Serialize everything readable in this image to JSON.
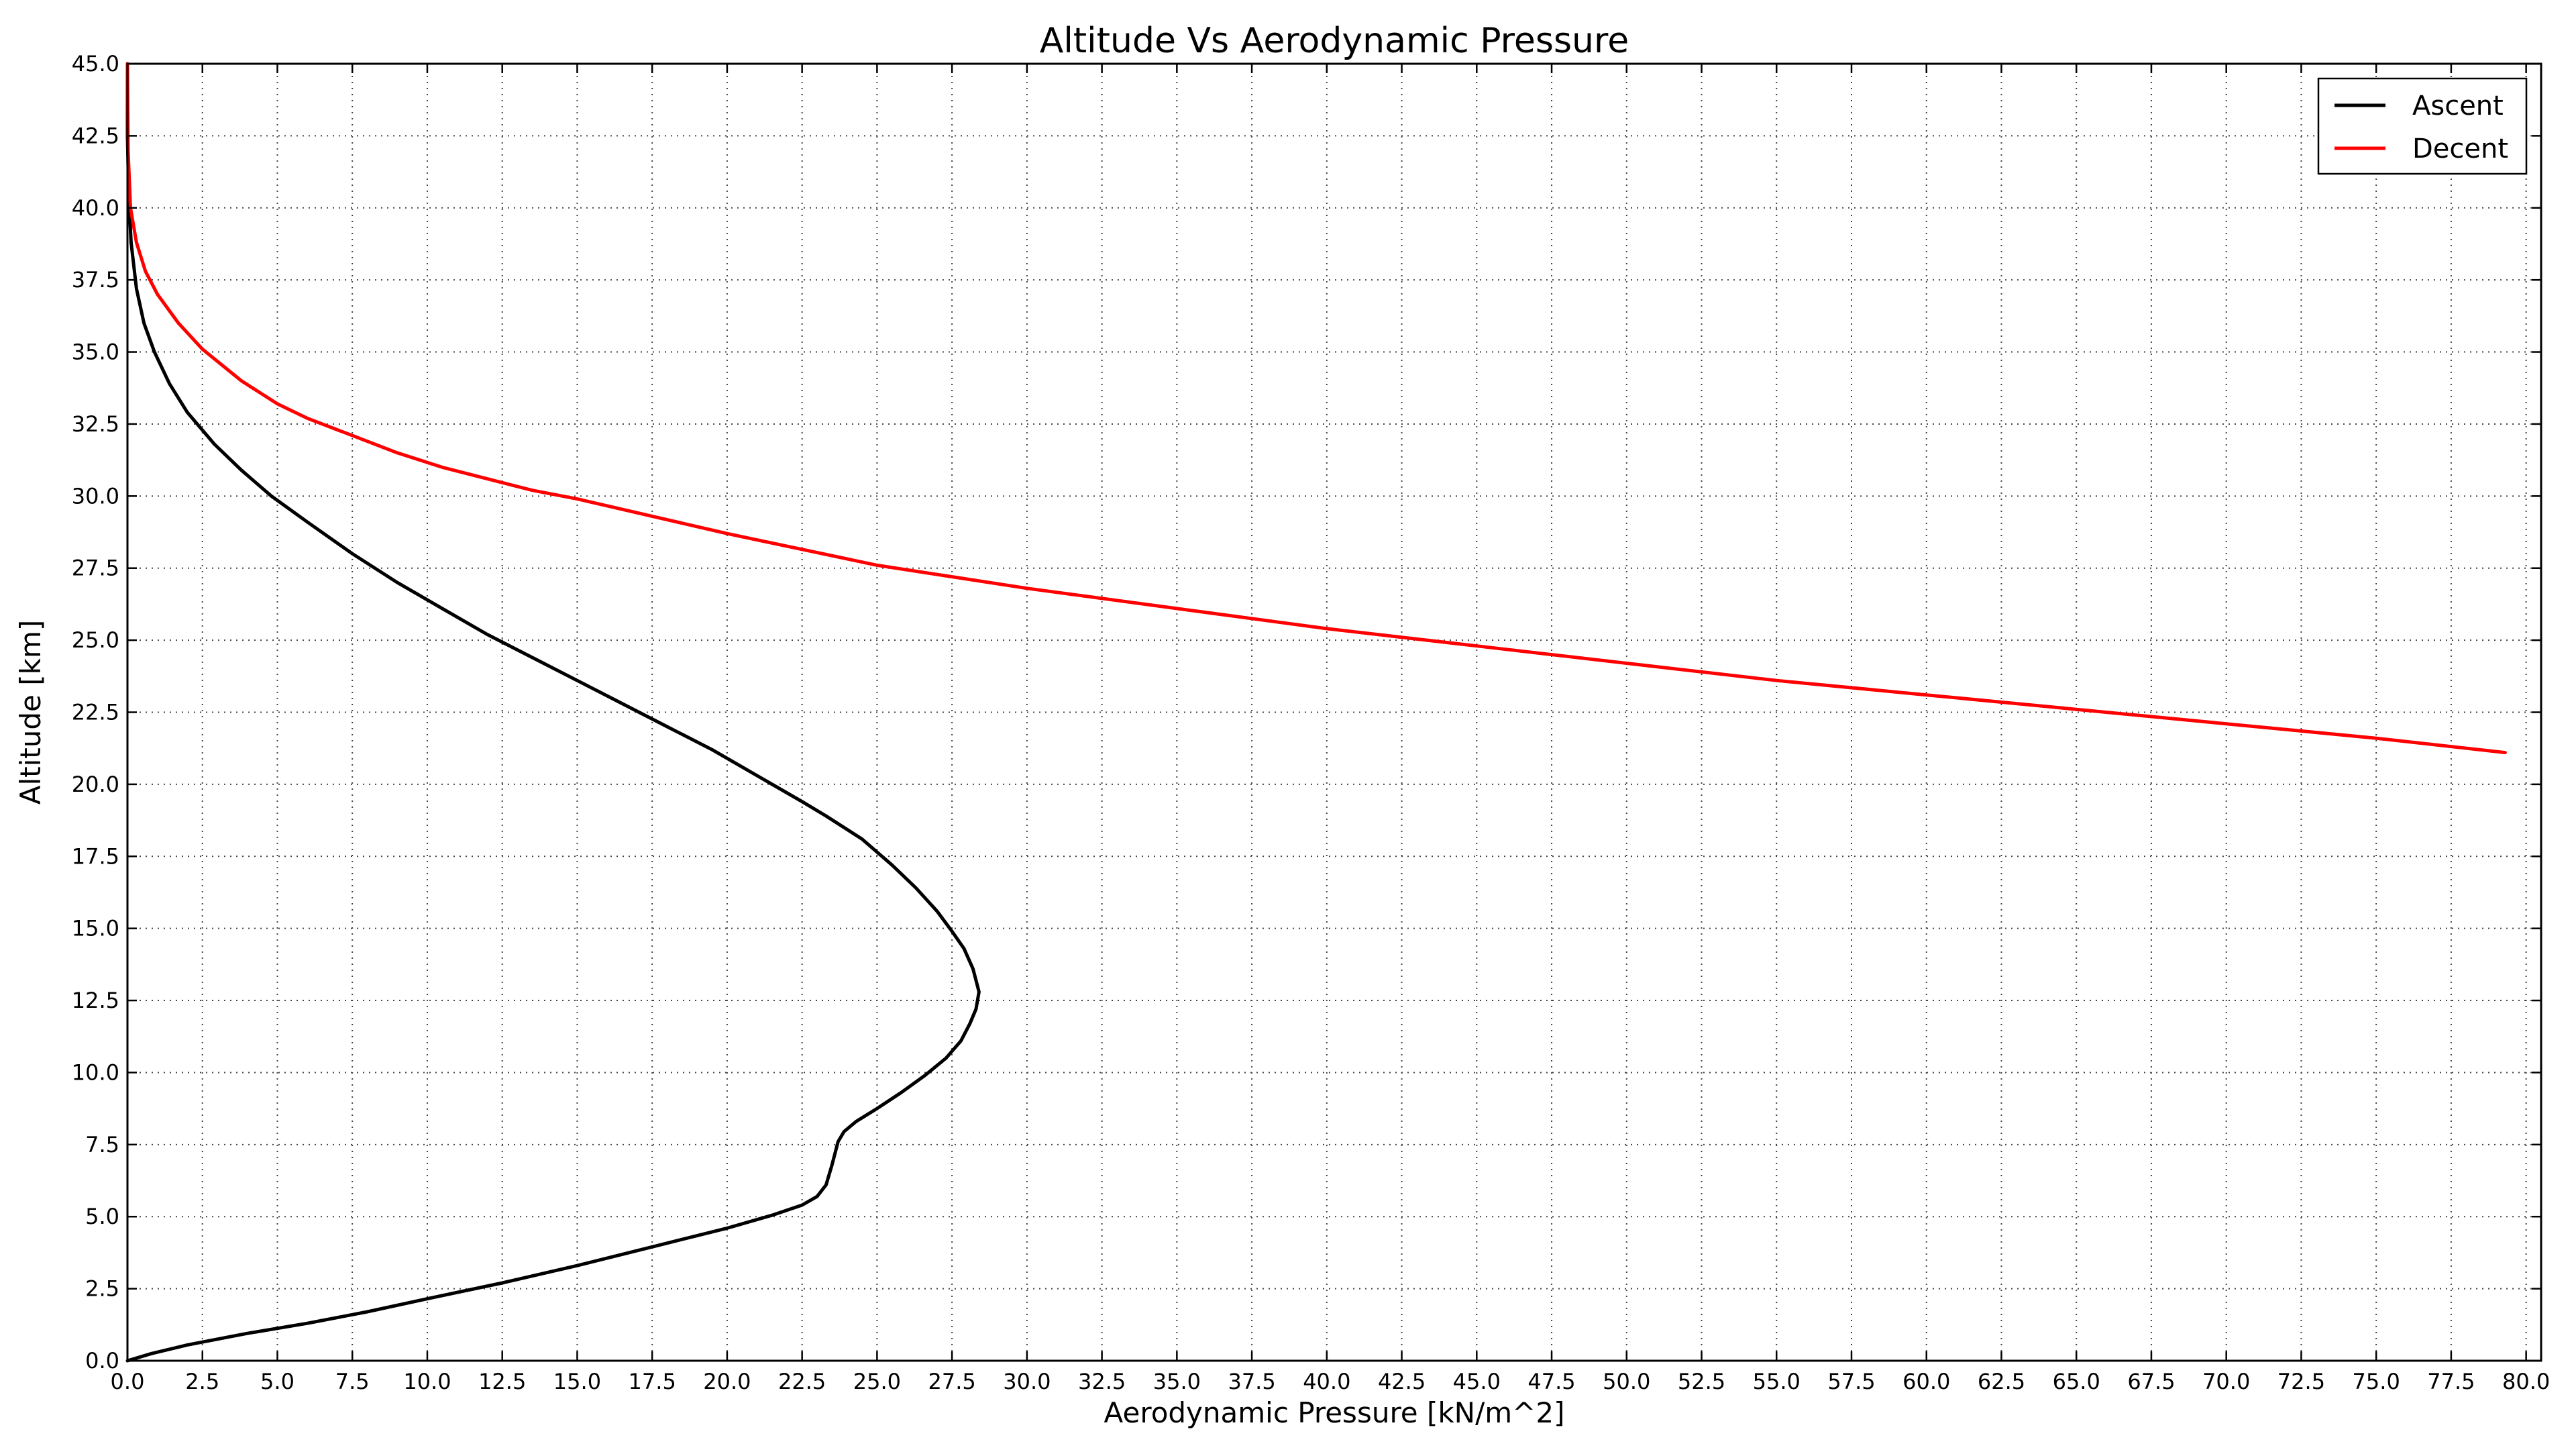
{
  "chart_data": {
    "type": "line",
    "title": "Altitude Vs Aerodynamic Pressure",
    "xlabel": "Aerodynamic Pressure [kN/m^2]",
    "ylabel": "Altitude [km]",
    "xlim": [
      0,
      80.5
    ],
    "ylim": [
      0,
      45
    ],
    "x_tick_step": 2.5,
    "y_tick_step": 2.5,
    "grid": true,
    "grid_style": "dotted",
    "legend_position": "top-right",
    "series": [
      {
        "name": "Ascent",
        "color": "#000000",
        "points": [
          [
            0.0,
            0.0
          ],
          [
            0.8,
            0.25
          ],
          [
            2.0,
            0.55
          ],
          [
            4.0,
            0.95
          ],
          [
            6.0,
            1.3
          ],
          [
            8.0,
            1.7
          ],
          [
            10.0,
            2.15
          ],
          [
            12.5,
            2.7
          ],
          [
            15.0,
            3.3
          ],
          [
            17.5,
            3.95
          ],
          [
            20.0,
            4.6
          ],
          [
            21.5,
            5.05
          ],
          [
            22.5,
            5.4
          ],
          [
            23.0,
            5.7
          ],
          [
            23.3,
            6.1
          ],
          [
            23.5,
            6.8
          ],
          [
            23.7,
            7.6
          ],
          [
            23.9,
            7.95
          ],
          [
            24.3,
            8.3
          ],
          [
            25.0,
            8.75
          ],
          [
            25.8,
            9.3
          ],
          [
            26.6,
            9.9
          ],
          [
            27.3,
            10.5
          ],
          [
            27.8,
            11.1
          ],
          [
            28.1,
            11.7
          ],
          [
            28.3,
            12.2
          ],
          [
            28.4,
            12.8
          ],
          [
            28.2,
            13.6
          ],
          [
            27.9,
            14.3
          ],
          [
            27.5,
            14.9
          ],
          [
            27.0,
            15.6
          ],
          [
            26.3,
            16.4
          ],
          [
            25.5,
            17.2
          ],
          [
            24.5,
            18.1
          ],
          [
            23.3,
            18.9
          ],
          [
            22.5,
            19.4
          ],
          [
            21.0,
            20.3
          ],
          [
            19.5,
            21.2
          ],
          [
            18.0,
            22.0
          ],
          [
            16.5,
            22.8
          ],
          [
            15.0,
            23.6
          ],
          [
            13.5,
            24.4
          ],
          [
            12.0,
            25.2
          ],
          [
            10.5,
            26.1
          ],
          [
            9.0,
            27.0
          ],
          [
            7.5,
            28.0
          ],
          [
            6.0,
            29.1
          ],
          [
            4.8,
            30.0
          ],
          [
            3.8,
            30.9
          ],
          [
            2.9,
            31.8
          ],
          [
            2.0,
            32.9
          ],
          [
            1.4,
            33.9
          ],
          [
            0.9,
            35.0
          ],
          [
            0.55,
            36.0
          ],
          [
            0.3,
            37.2
          ],
          [
            0.12,
            38.8
          ],
          [
            0.04,
            40.5
          ],
          [
            0.0,
            42.5
          ],
          [
            0.0,
            45.0
          ]
        ]
      },
      {
        "name": "Decent",
        "color": "#ff0000",
        "points": [
          [
            0.0,
            45.0
          ],
          [
            0.02,
            42.0
          ],
          [
            0.1,
            40.0
          ],
          [
            0.3,
            38.8
          ],
          [
            0.6,
            37.8
          ],
          [
            1.0,
            37.0
          ],
          [
            1.7,
            36.0
          ],
          [
            2.5,
            35.1
          ],
          [
            3.8,
            34.0
          ],
          [
            5.0,
            33.2
          ],
          [
            6.0,
            32.7
          ],
          [
            7.5,
            32.1
          ],
          [
            9.0,
            31.5
          ],
          [
            10.5,
            31.0
          ],
          [
            12.0,
            30.6
          ],
          [
            13.5,
            30.2
          ],
          [
            15.0,
            29.9
          ],
          [
            17.5,
            29.3
          ],
          [
            20.0,
            28.7
          ],
          [
            25.0,
            27.6
          ],
          [
            30.0,
            26.8
          ],
          [
            35.0,
            26.1
          ],
          [
            40.0,
            25.4
          ],
          [
            45.0,
            24.8
          ],
          [
            50.0,
            24.2
          ],
          [
            55.0,
            23.6
          ],
          [
            60.0,
            23.1
          ],
          [
            65.0,
            22.6
          ],
          [
            70.0,
            22.1
          ],
          [
            75.0,
            21.6
          ],
          [
            79.3,
            21.1
          ]
        ]
      }
    ]
  }
}
